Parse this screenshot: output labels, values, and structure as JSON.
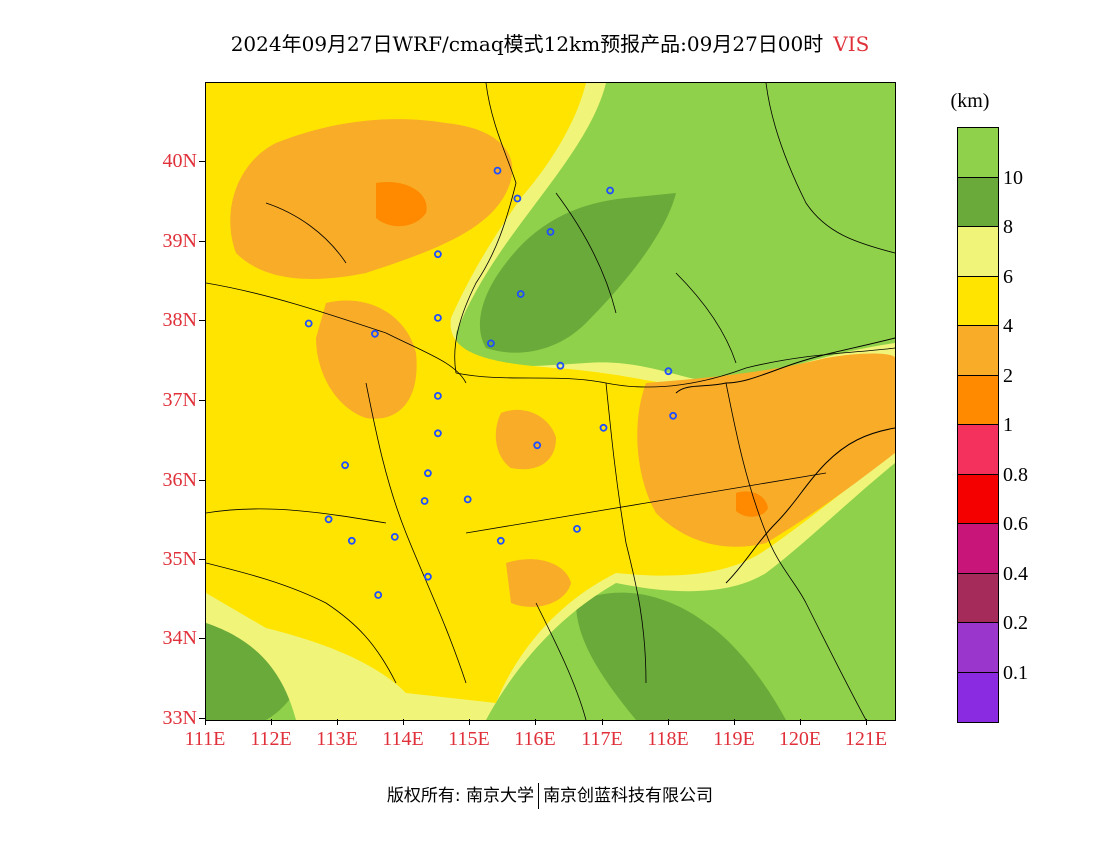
{
  "title": {
    "text": "2024年09月27日WRF/cmaq模式12km预报产品:09月27日00时",
    "variable": "VIS"
  },
  "map": {
    "lat_labels": [
      "40N",
      "39N",
      "38N",
      "37N",
      "36N",
      "35N",
      "34N",
      "33N"
    ],
    "lon_labels": [
      "111E",
      "112E",
      "113E",
      "114E",
      "115E",
      "116E",
      "117E",
      "118E",
      "119E",
      "120E",
      "121E"
    ],
    "colors": {
      "vis_gt10": "#8fd14a",
      "vis_8_10": "#6aaa3a",
      "vis_6_8": "#f0f57a",
      "vis_4_6": "#ffe400",
      "vis_2_4": "#f9ac28",
      "vis_1_2": "#ff8a00",
      "boundary": "#000000",
      "city_marker": "#1f4fff"
    },
    "city_markers": [
      {
        "lon": 115.4,
        "lat": 39.9
      },
      {
        "lon": 115.7,
        "lat": 39.55
      },
      {
        "lon": 116.2,
        "lat": 39.13
      },
      {
        "lon": 117.1,
        "lat": 39.65
      },
      {
        "lon": 114.5,
        "lat": 38.85
      },
      {
        "lon": 115.75,
        "lat": 38.35
      },
      {
        "lon": 112.55,
        "lat": 37.98
      },
      {
        "lon": 113.55,
        "lat": 37.85
      },
      {
        "lon": 114.5,
        "lat": 38.05
      },
      {
        "lon": 115.3,
        "lat": 37.73
      },
      {
        "lon": 116.35,
        "lat": 37.45
      },
      {
        "lon": 117.98,
        "lat": 37.38
      },
      {
        "lon": 114.5,
        "lat": 37.07
      },
      {
        "lon": 114.5,
        "lat": 36.6
      },
      {
        "lon": 116.0,
        "lat": 36.45
      },
      {
        "lon": 117.0,
        "lat": 36.67
      },
      {
        "lon": 118.05,
        "lat": 36.82
      },
      {
        "lon": 113.1,
        "lat": 36.2
      },
      {
        "lon": 114.35,
        "lat": 36.1
      },
      {
        "lon": 114.3,
        "lat": 35.75
      },
      {
        "lon": 114.95,
        "lat": 35.77
      },
      {
        "lon": 112.85,
        "lat": 35.52
      },
      {
        "lon": 113.2,
        "lat": 35.25
      },
      {
        "lon": 113.85,
        "lat": 35.3
      },
      {
        "lon": 115.45,
        "lat": 35.25
      },
      {
        "lon": 116.6,
        "lat": 35.4
      },
      {
        "lon": 114.35,
        "lat": 34.8
      },
      {
        "lon": 113.6,
        "lat": 34.57
      }
    ]
  },
  "colorbar": {
    "unit": "(km)",
    "labels": [
      "10",
      "8",
      "6",
      "4",
      "2",
      "1",
      "0.8",
      "0.6",
      "0.4",
      "0.2",
      "0.1"
    ],
    "colors": [
      "#8fd14a",
      "#6aaa3a",
      "#f0f57a",
      "#ffe400",
      "#f9ac28",
      "#ff8a00",
      "#f4305c",
      "#f50000",
      "#c81579",
      "#a52c5a",
      "#9a36cc",
      "#8a2be2"
    ]
  },
  "footer": {
    "copyright_left": "版权所有: 南京大学",
    "copyright_right": "南京创蓝科技有限公司"
  }
}
